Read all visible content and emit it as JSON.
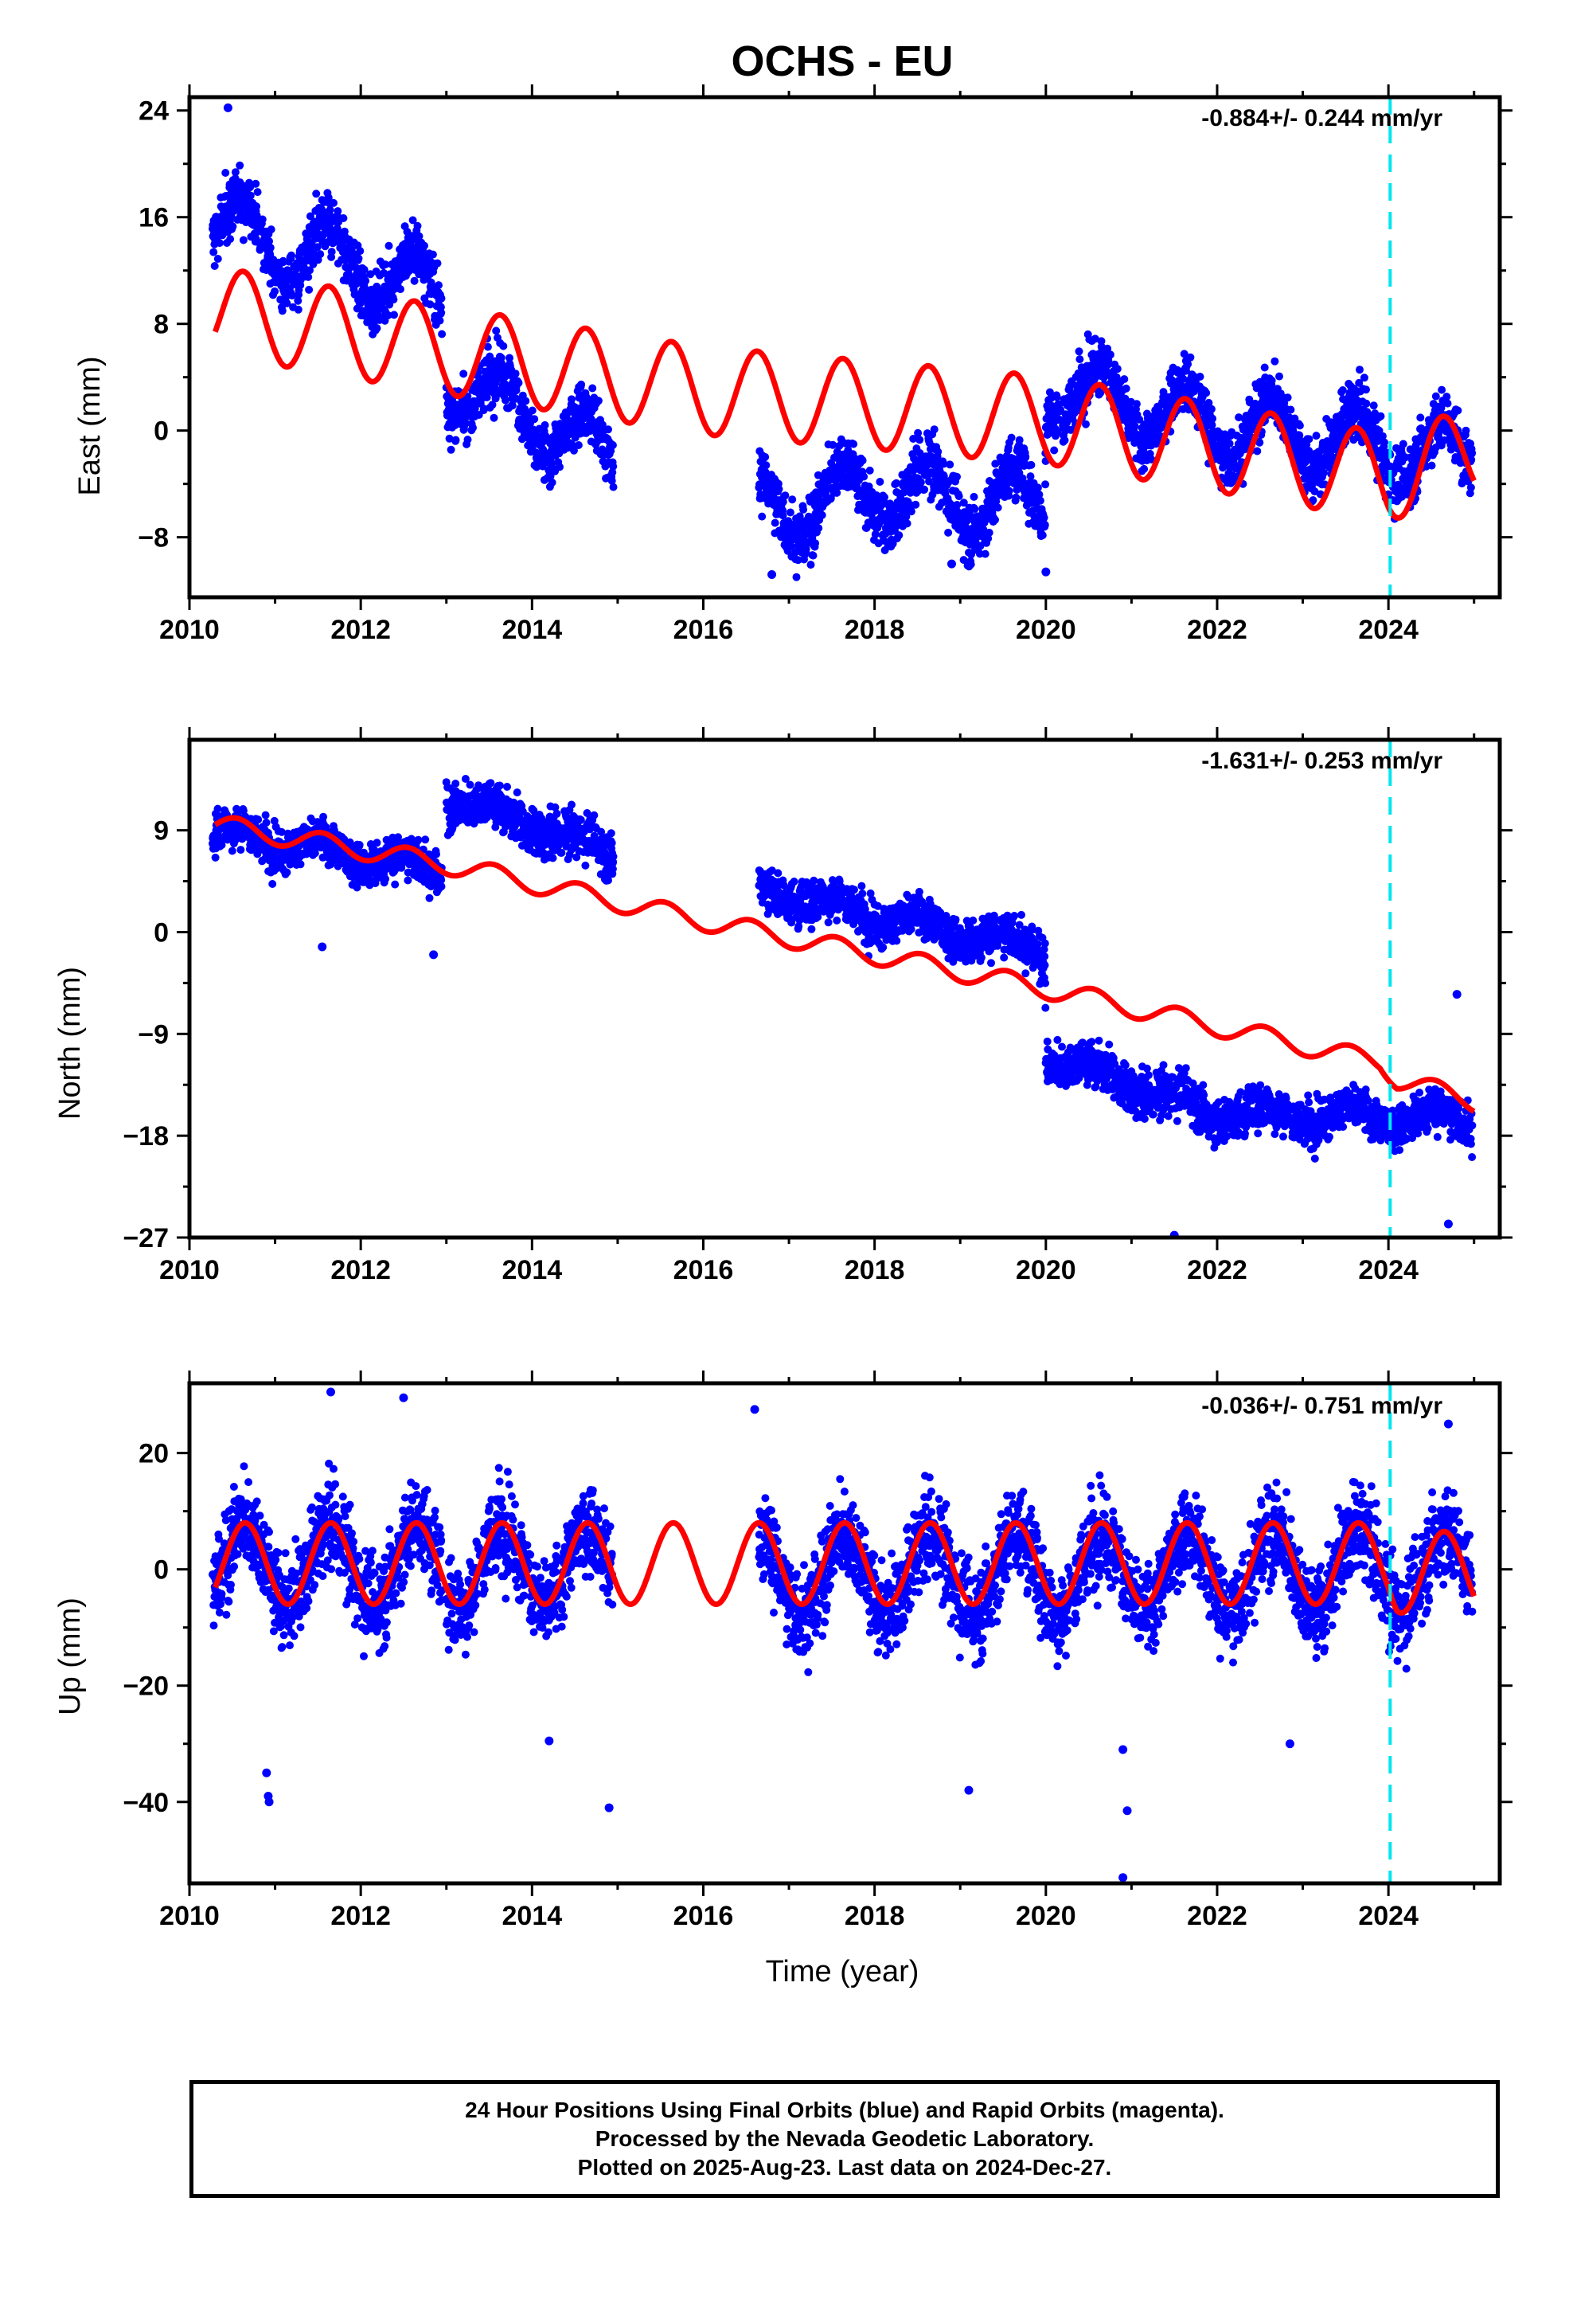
{
  "title": "OCHS - EU",
  "xlabel": "Time (year)",
  "footer": {
    "line1": "24 Hour Positions Using Final Orbits (blue) and Rapid Orbits (magenta).",
    "line2": "Processed by the Nevada Geodetic Laboratory.",
    "line3": "Plotted on 2025-Aug-23. Last data on 2024-Dec-27."
  },
  "colors": {
    "data": "#0000ff",
    "model": "#ff0000",
    "event": "#00e5ee",
    "frame": "#000000"
  },
  "chart_data": [
    {
      "type": "scatter",
      "title": "OCHS - EU",
      "ylabel": "East (mm)",
      "rate_text": "-0.884+/- 0.244 mm/yr",
      "xlim": [
        2010,
        2025.3
      ],
      "ylim": [
        -12.5,
        25
      ],
      "xticks": [
        2010,
        2012,
        2014,
        2016,
        2018,
        2020,
        2022,
        2024
      ],
      "yticks": [
        -8,
        0,
        8,
        16,
        24
      ],
      "event_line_x": 2024.02,
      "data_segments": [
        [
          2010.27,
          2012.95
        ],
        [
          2013.0,
          2014.95
        ],
        [
          2016.65,
          2024.98
        ]
      ],
      "observed_trend": [
        {
          "x": 2010.3,
          "y": 16.0
        },
        {
          "x": 2011.0,
          "y": 13.5
        },
        {
          "x": 2012.0,
          "y": 12.5
        },
        {
          "x": 2012.95,
          "y": 10.0
        },
        {
          "x": 2013.0,
          "y": 4.0
        },
        {
          "x": 2014.0,
          "y": 1.0
        },
        {
          "x": 2014.95,
          "y": -2.0
        },
        {
          "x": 2016.65,
          "y": -6.0
        },
        {
          "x": 2018.0,
          "y": -4.5
        },
        {
          "x": 2019.99,
          "y": -5.5
        },
        {
          "x": 2020.0,
          "y": 3.5
        },
        {
          "x": 2022.0,
          "y": 0.5
        },
        {
          "x": 2024.98,
          "y": -2.0
        }
      ],
      "observed_seasonal_amplitude": 2.5,
      "observed_scatter": 1.6,
      "model_trend": [
        {
          "x": 2010.3,
          "y": 9.0
        },
        {
          "x": 2013.0,
          "y": 6.0
        },
        {
          "x": 2016.0,
          "y": 3.0
        },
        {
          "x": 2020.0,
          "y": 0.8
        },
        {
          "x": 2022.0,
          "y": -1.3
        },
        {
          "x": 2024.0,
          "y": -3.5
        },
        {
          "x": 2025.0,
          "y": -1.5
        }
      ],
      "model_seasonal_amplitude": 3.3,
      "model_seasonal_phase": 0.38,
      "outliers": [
        {
          "x": 2010.45,
          "y": 24.2
        },
        {
          "x": 2016.8,
          "y": -10.8
        },
        {
          "x": 2018.9,
          "y": -10.0
        },
        {
          "x": 2020.0,
          "y": -10.6
        }
      ]
    },
    {
      "type": "scatter",
      "ylabel": "North (mm)",
      "rate_text": "-1.631+/- 0.253 mm/yr",
      "xlim": [
        2010,
        2025.3
      ],
      "ylim": [
        -27,
        17
      ],
      "xticks": [
        2010,
        2012,
        2014,
        2016,
        2018,
        2020,
        2022,
        2024
      ],
      "yticks": [
        -27,
        -18,
        -9,
        0,
        9
      ],
      "event_line_x": 2024.02,
      "data_segments": [
        [
          2010.27,
          2012.95
        ],
        [
          2013.0,
          2014.95
        ],
        [
          2016.65,
          2024.98
        ]
      ],
      "observed_trend": [
        {
          "x": 2010.3,
          "y": 9.0
        },
        {
          "x": 2012.95,
          "y": 5.5
        },
        {
          "x": 2013.0,
          "y": 12.0
        },
        {
          "x": 2014.95,
          "y": 7.0
        },
        {
          "x": 2016.65,
          "y": 4.0
        },
        {
          "x": 2018.0,
          "y": 1.5
        },
        {
          "x": 2019.99,
          "y": -1.5
        },
        {
          "x": 2020.0,
          "y": -11.0
        },
        {
          "x": 2022.0,
          "y": -16.0
        },
        {
          "x": 2024.98,
          "y": -16.5
        }
      ],
      "observed_seasonal_amplitude": 0.8,
      "observed_scatter": 1.4,
      "model_trend": [
        {
          "x": 2010.3,
          "y": 9.5
        },
        {
          "x": 2013.0,
          "y": 6.0
        },
        {
          "x": 2016.0,
          "y": 1.0
        },
        {
          "x": 2020.0,
          "y": -5.0
        },
        {
          "x": 2023.9,
          "y": -11.5
        },
        {
          "x": 2024.1,
          "y": -13.0
        },
        {
          "x": 2025.0,
          "y": -15.0
        }
      ],
      "model_seasonal_amplitude": 0.9,
      "model_seasonal_phase": 0.3,
      "outliers": [
        {
          "x": 2011.55,
          "y": -1.3
        },
        {
          "x": 2012.85,
          "y": -2.0
        },
        {
          "x": 2021.5,
          "y": -26.8
        },
        {
          "x": 2024.7,
          "y": -25.8
        },
        {
          "x": 2024.8,
          "y": -5.5
        }
      ]
    },
    {
      "type": "scatter",
      "ylabel": "Up (mm)",
      "rate_text": "-0.036+/- 0.751 mm/yr",
      "xlim": [
        2010,
        2025.3
      ],
      "ylim": [
        -54,
        32
      ],
      "xticks": [
        2010,
        2012,
        2014,
        2016,
        2018,
        2020,
        2022,
        2024
      ],
      "yticks": [
        -40,
        -20,
        0,
        20
      ],
      "event_line_x": 2024.02,
      "data_segments": [
        [
          2010.27,
          2012.95
        ],
        [
          2013.0,
          2014.95
        ],
        [
          2016.65,
          2024.98
        ]
      ],
      "observed_trend": [
        {
          "x": 2010.3,
          "y": 1.0
        },
        {
          "x": 2014.95,
          "y": 0.5
        },
        {
          "x": 2016.65,
          "y": -1.0
        },
        {
          "x": 2024.98,
          "y": 0.0
        }
      ],
      "observed_seasonal_amplitude": 7.0,
      "observed_scatter": 5.5,
      "model_trend": [
        {
          "x": 2010.3,
          "y": 1.0
        },
        {
          "x": 2024.0,
          "y": 1.0
        },
        {
          "x": 2024.1,
          "y": -0.5
        },
        {
          "x": 2025.0,
          "y": -0.5
        }
      ],
      "model_seasonal_amplitude": 7.0,
      "model_seasonal_phase": 0.4,
      "outliers": [
        {
          "x": 2010.9,
          "y": -35.0
        },
        {
          "x": 2010.92,
          "y": -39.0
        },
        {
          "x": 2010.93,
          "y": -40.0
        },
        {
          "x": 2011.65,
          "y": 30.5
        },
        {
          "x": 2012.5,
          "y": 29.5
        },
        {
          "x": 2014.2,
          "y": -29.5
        },
        {
          "x": 2014.9,
          "y": -41.0
        },
        {
          "x": 2016.6,
          "y": 27.5
        },
        {
          "x": 2019.1,
          "y": -38.0
        },
        {
          "x": 2020.9,
          "y": -31.0
        },
        {
          "x": 2020.95,
          "y": -41.5
        },
        {
          "x": 2020.9,
          "y": -53.0
        },
        {
          "x": 2022.85,
          "y": -30.0
        },
        {
          "x": 2024.7,
          "y": 25.0
        }
      ]
    }
  ]
}
